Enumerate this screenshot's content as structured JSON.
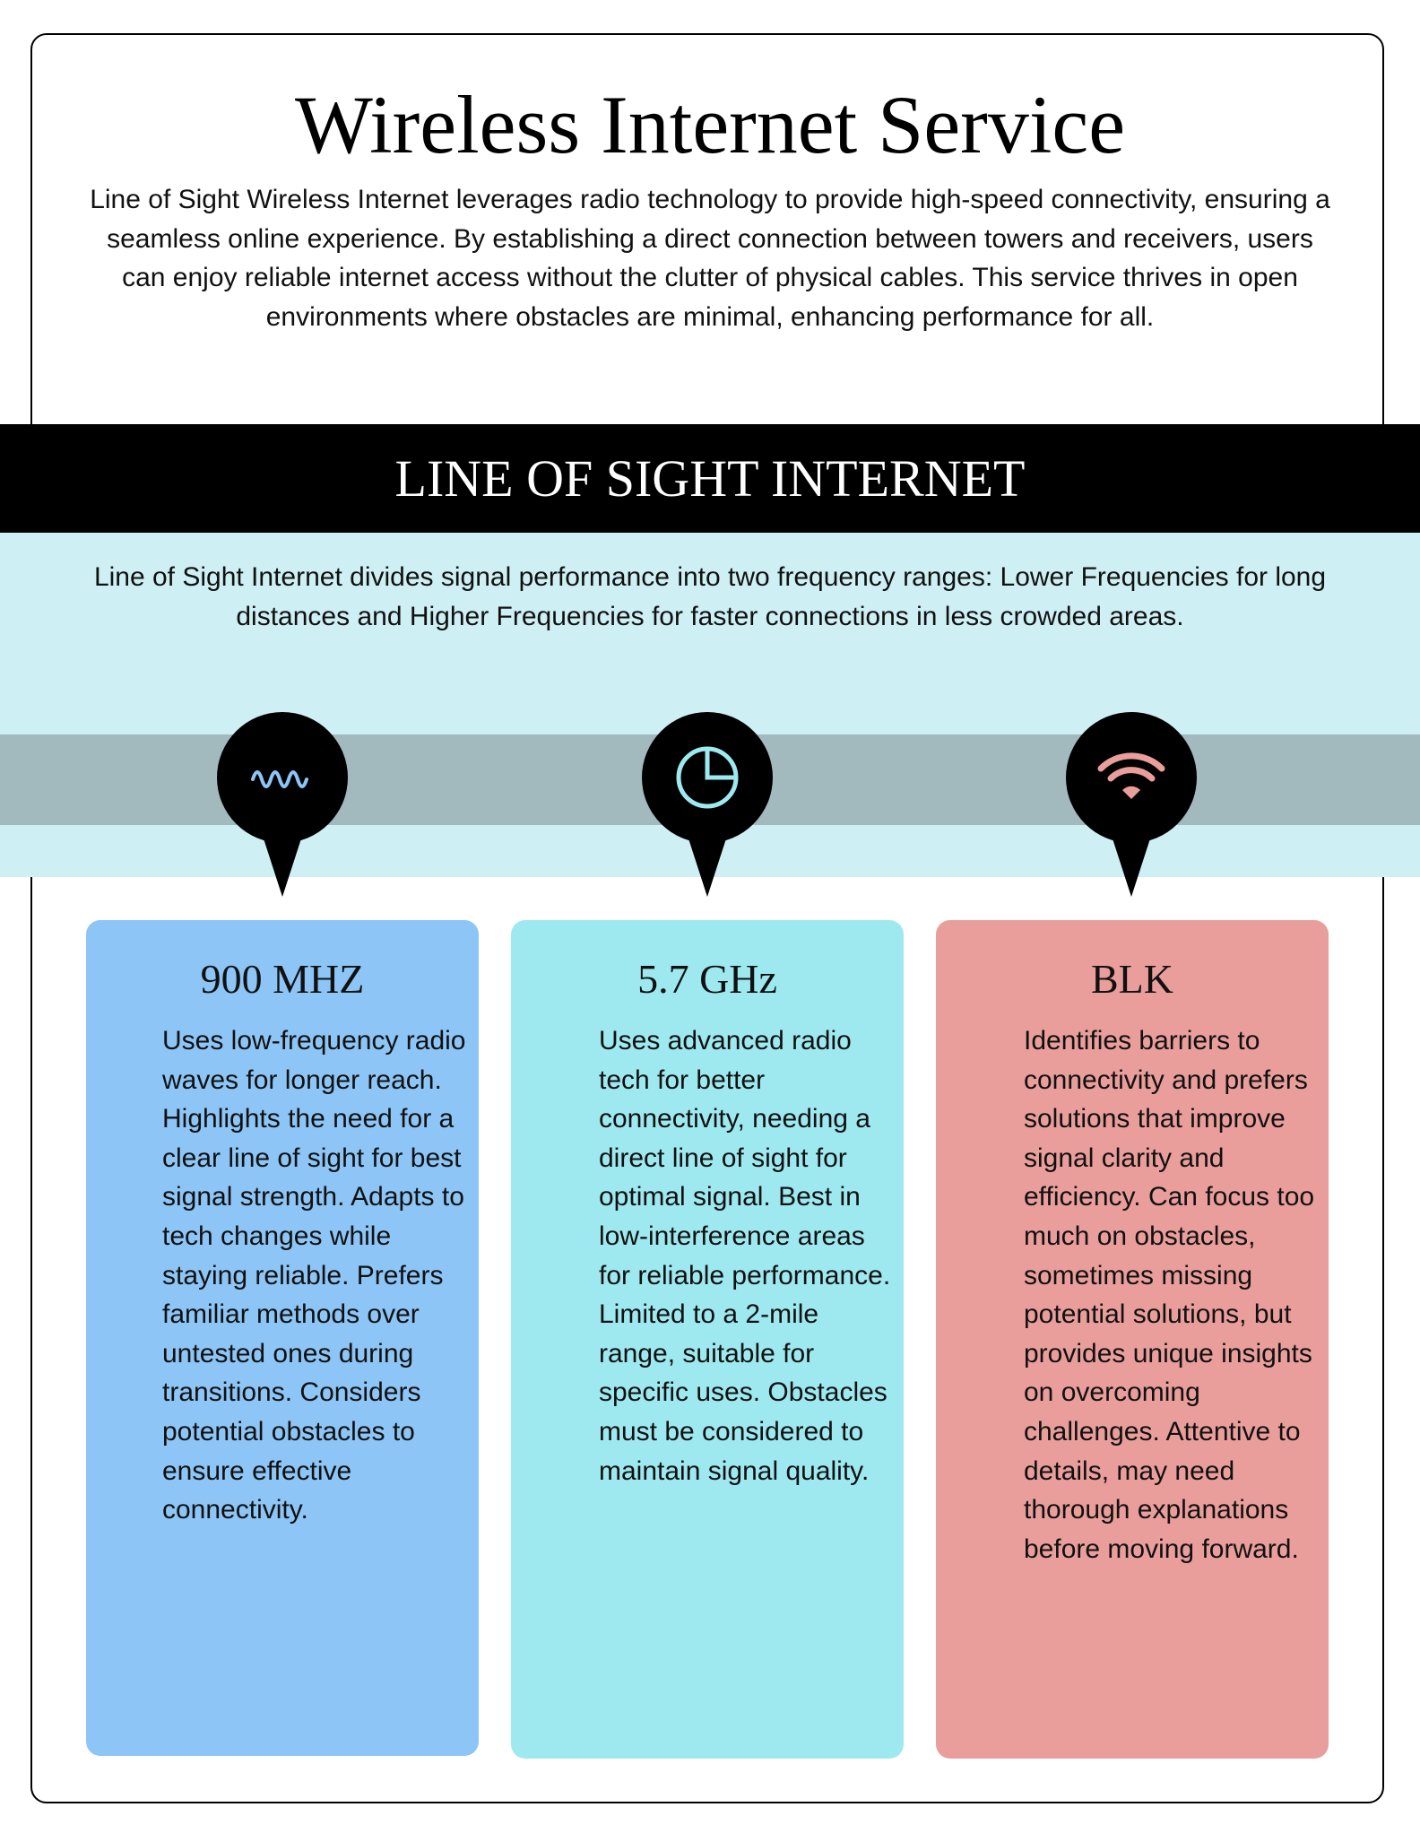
{
  "header": {
    "title": "Wireless Internet Service",
    "intro": "Line of Sight Wireless Internet leverages radio technology to provide high-speed connectivity, ensuring a seamless online experience. By establishing a direct connection between towers and receivers, users can enjoy reliable internet access without the clutter of physical cables. This service thrives in open environments where obstacles are minimal, enhancing performance for all."
  },
  "section": {
    "title": "LINE OF SIGHT INTERNET",
    "description": "Line of Sight Internet divides signal performance into two frequency ranges: Lower Frequencies for long distances and Higher Frequencies for faster connections in less crowded areas."
  },
  "cards": [
    {
      "icon": "wave-icon",
      "title": "900 MHZ",
      "body": "Uses low-frequency radio waves for longer reach. Highlights the need for a clear line of sight for best signal strength. Adapts to tech changes while staying reliable. Prefers familiar methods over untested ones during transitions. Considers potential obstacles to ensure effective connectivity.",
      "color": "#8cc5f6"
    },
    {
      "icon": "pie-chart-icon",
      "title": "5.7 GHz",
      "body": "Uses advanced radio tech for better connectivity, needing a direct line of sight for optimal signal. Best in low-interference areas for reliable performance. Limited to a 2-mile range, suitable for specific uses. Obstacles must be considered to maintain signal quality.",
      "color": "#9ee9f0"
    },
    {
      "icon": "wifi-icon",
      "title": "BLK",
      "body": "Identifies barriers to connectivity and prefers solutions that improve signal clarity and efficiency. Can focus too much on obstacles, sometimes missing potential solutions, but provides unique insights on overcoming challenges. Attentive to details, may need thorough explanations before moving forward.",
      "color": "#e99e9b"
    }
  ],
  "colors": {
    "band_light": "#cef0f4",
    "band_gray": "#a2b9bd",
    "band_black": "#000000",
    "icon_blue": "#8cc5f6",
    "icon_cyan": "#9ee9f0",
    "icon_pink": "#e99e9b"
  }
}
